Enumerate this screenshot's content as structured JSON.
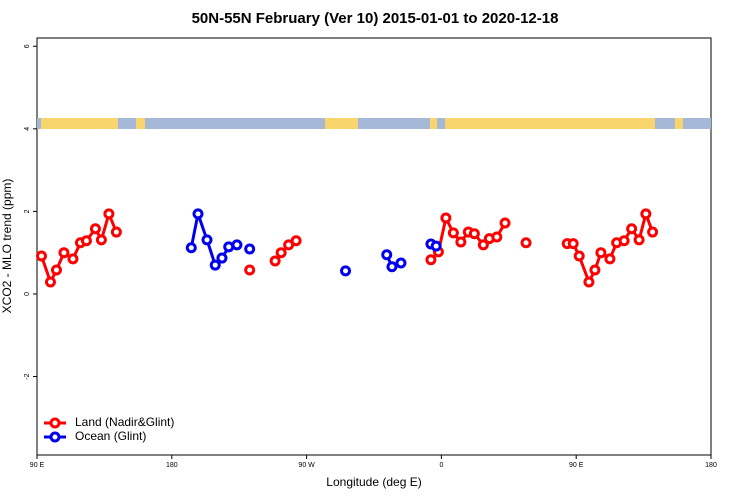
{
  "chart_data": {
    "type": "line",
    "title": "50N-55N February (Ver 10)   2015-01-01 to 2020-12-18",
    "xlabel": "Longitude (deg E)",
    "ylabel": "XCO2 - MLO trend (ppm)",
    "xlim": [
      90,
      540
    ],
    "ylim": [
      -3.9,
      6.2
    ],
    "xticks": [
      {
        "value": 90,
        "label": "90 E"
      },
      180,
      {
        "value": 270,
        "label": "90 W"
      },
      {
        "value": 360,
        "label": "0"
      },
      {
        "value": 450,
        "label": "90 E"
      },
      {
        "value": 540,
        "label": "180"
      }
    ],
    "yticks": [
      -2,
      0,
      2,
      4,
      6
    ],
    "legend": "bottom-left",
    "series": [
      {
        "name": "Land (Nadir&Glint)",
        "color": "#ff0000",
        "x": [
          93,
          99,
          103,
          108,
          114,
          119,
          123,
          129,
          133,
          138,
          143,
          null,
          232,
          null,
          249,
          253,
          258,
          263,
          null,
          353,
          358,
          363,
          368,
          373,
          378,
          382,
          388,
          392,
          397,
          402.5,
          null,
          416.5,
          null,
          444,
          448,
          452,
          458.5,
          462.5,
          466.5,
          472.5,
          477,
          482,
          487,
          492,
          496.5,
          501
        ],
        "values": [
          0.92,
          0.29,
          0.58,
          1.0,
          0.85,
          1.24,
          1.29,
          1.58,
          1.31,
          1.94,
          1.5,
          null,
          0.58,
          null,
          0.8,
          1.0,
          1.19,
          1.29,
          null,
          0.83,
          1.02,
          1.84,
          1.48,
          1.26,
          1.5,
          1.46,
          1.19,
          1.34,
          1.38,
          1.72,
          null,
          1.24,
          null,
          1.22,
          1.22,
          0.92,
          0.29,
          0.58,
          1.0,
          0.85,
          1.24,
          1.29,
          1.58,
          1.31,
          1.94,
          1.5
        ]
      },
      {
        "name": "Ocean (Glint)",
        "color": "#0000ee",
        "x": [
          193,
          197.5,
          203.5,
          209,
          213.5,
          218,
          223.5,
          null,
          232,
          null,
          296,
          null,
          323.5,
          327,
          333,
          null,
          353,
          356.5
        ],
        "values": [
          1.12,
          1.94,
          1.31,
          0.7,
          0.87,
          1.14,
          1.19,
          null,
          1.09,
          null,
          0.56,
          null,
          0.95,
          0.66,
          0.75,
          null,
          1.21,
          1.16
        ]
      }
    ]
  }
}
